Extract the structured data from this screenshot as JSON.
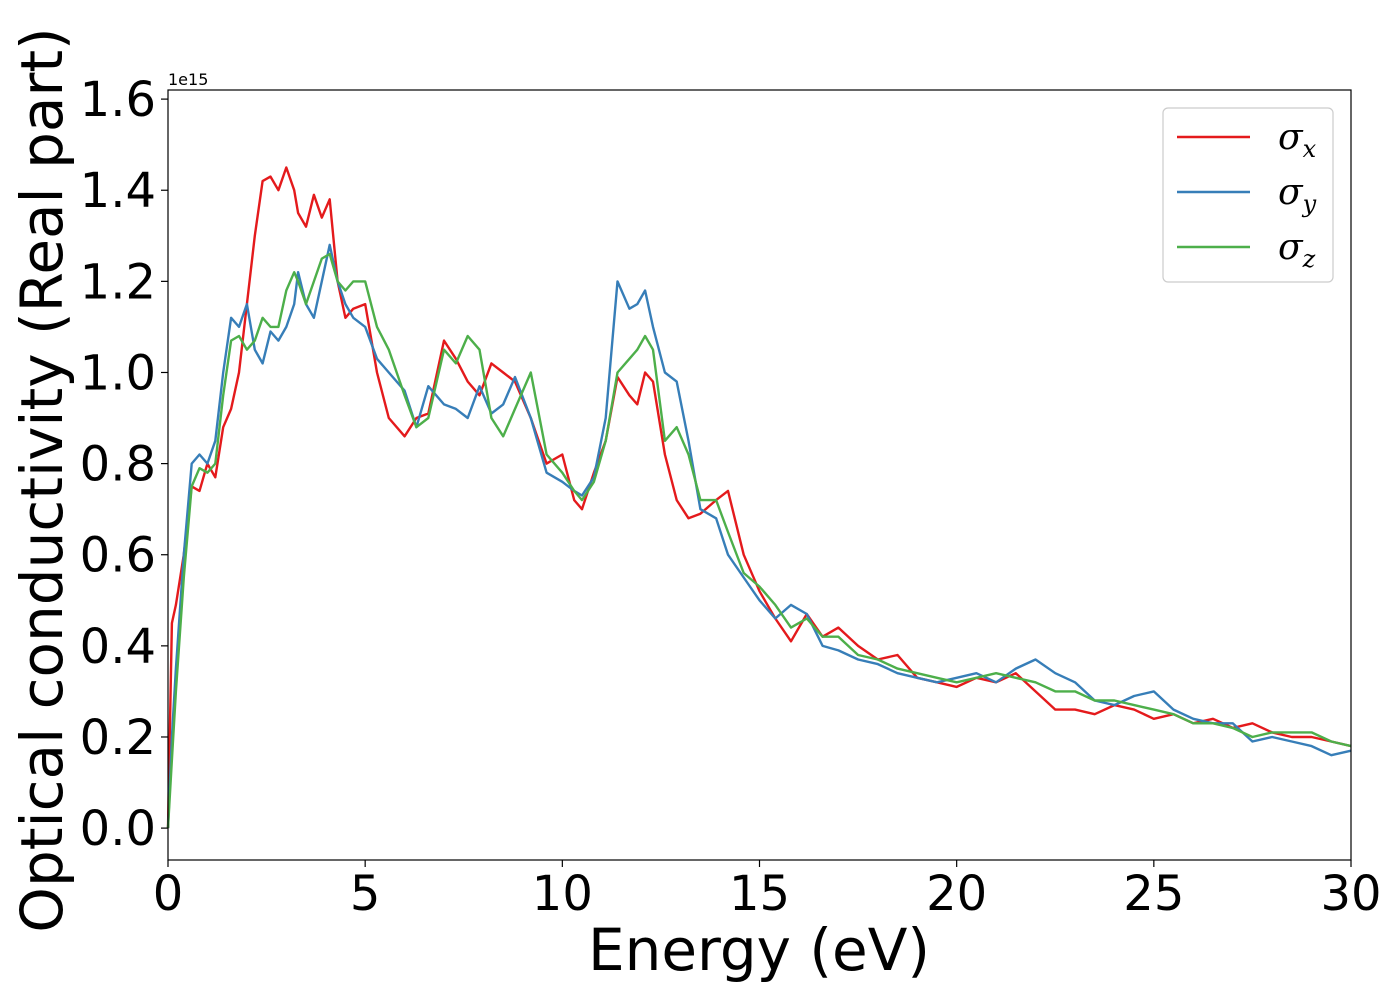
{
  "chart_data": {
    "type": "line",
    "xlabel": "Energy (eV)",
    "ylabel": "Optical conductivity (Real part)",
    "y_offset_label": "1e15",
    "xlim": [
      0,
      30
    ],
    "ylim": [
      -0.07,
      1.62
    ],
    "xticks": [
      0,
      5,
      10,
      15,
      20,
      25,
      30
    ],
    "yticks": [
      0.0,
      0.2,
      0.4,
      0.6,
      0.8,
      1.0,
      1.2,
      1.4,
      1.6
    ],
    "xtick_labels": [
      "0",
      "5",
      "10",
      "15",
      "20",
      "25",
      "30"
    ],
    "ytick_labels": [
      "0.0",
      "0.2",
      "0.4",
      "0.6",
      "0.8",
      "1.0",
      "1.2",
      "1.4",
      "1.6"
    ],
    "grid": false,
    "legend_position": "top-right",
    "series": [
      {
        "name": "σx",
        "legend_base": "σ",
        "legend_sub": "x",
        "color": "#e41a1c",
        "x": [
          0,
          0.1,
          0.2,
          0.4,
          0.6,
          0.8,
          1.0,
          1.2,
          1.4,
          1.6,
          1.8,
          2.0,
          2.2,
          2.4,
          2.6,
          2.8,
          3.0,
          3.2,
          3.3,
          3.5,
          3.7,
          3.9,
          4.1,
          4.3,
          4.5,
          4.7,
          5.0,
          5.3,
          5.6,
          6.0,
          6.3,
          6.6,
          7.0,
          7.3,
          7.6,
          7.9,
          8.2,
          8.5,
          8.8,
          9.2,
          9.6,
          10.0,
          10.3,
          10.5,
          10.8,
          11.1,
          11.4,
          11.7,
          11.9,
          12.1,
          12.3,
          12.6,
          12.9,
          13.2,
          13.5,
          13.9,
          14.2,
          14.6,
          15.0,
          15.4,
          15.8,
          16.2,
          16.6,
          17.0,
          17.5,
          18.0,
          18.5,
          19.0,
          19.5,
          20.0,
          20.5,
          21.0,
          21.5,
          22.0,
          22.5,
          23.0,
          23.5,
          24.0,
          24.5,
          25.0,
          25.5,
          26.0,
          26.5,
          27.0,
          27.5,
          28.0,
          28.5,
          29.0,
          29.5,
          30.0
        ],
        "y": [
          0.0,
          0.45,
          0.49,
          0.6,
          0.75,
          0.74,
          0.8,
          0.77,
          0.88,
          0.92,
          1.0,
          1.15,
          1.3,
          1.42,
          1.43,
          1.4,
          1.45,
          1.4,
          1.35,
          1.32,
          1.39,
          1.34,
          1.38,
          1.2,
          1.12,
          1.14,
          1.15,
          1.0,
          0.9,
          0.86,
          0.9,
          0.91,
          1.07,
          1.03,
          0.98,
          0.95,
          1.02,
          1.0,
          0.98,
          0.9,
          0.8,
          0.82,
          0.72,
          0.7,
          0.78,
          0.85,
          0.99,
          0.95,
          0.93,
          1.0,
          0.98,
          0.82,
          0.72,
          0.68,
          0.69,
          0.72,
          0.74,
          0.6,
          0.52,
          0.46,
          0.41,
          0.47,
          0.42,
          0.44,
          0.4,
          0.37,
          0.38,
          0.33,
          0.32,
          0.31,
          0.33,
          0.32,
          0.34,
          0.3,
          0.26,
          0.26,
          0.25,
          0.27,
          0.26,
          0.24,
          0.25,
          0.23,
          0.24,
          0.22,
          0.23,
          0.21,
          0.2,
          0.2,
          0.19,
          0.18
        ]
      },
      {
        "name": "σy",
        "legend_base": "σ",
        "legend_sub": "y",
        "color": "#377eb8",
        "x": [
          0,
          0.1,
          0.2,
          0.4,
          0.6,
          0.8,
          1.0,
          1.2,
          1.4,
          1.6,
          1.8,
          2.0,
          2.2,
          2.4,
          2.6,
          2.8,
          3.0,
          3.2,
          3.3,
          3.5,
          3.7,
          3.9,
          4.1,
          4.3,
          4.5,
          4.7,
          5.0,
          5.3,
          5.6,
          6.0,
          6.3,
          6.6,
          7.0,
          7.3,
          7.6,
          7.9,
          8.2,
          8.5,
          8.8,
          9.2,
          9.6,
          10.0,
          10.3,
          10.5,
          10.8,
          11.1,
          11.4,
          11.7,
          11.9,
          12.1,
          12.3,
          12.6,
          12.9,
          13.2,
          13.5,
          13.9,
          14.2,
          14.6,
          15.0,
          15.4,
          15.8,
          16.2,
          16.6,
          17.0,
          17.5,
          18.0,
          18.5,
          19.0,
          19.5,
          20.0,
          20.5,
          21.0,
          21.5,
          22.0,
          22.5,
          23.0,
          23.5,
          24.0,
          24.5,
          25.0,
          25.5,
          26.0,
          26.5,
          27.0,
          27.5,
          28.0,
          28.5,
          29.0,
          29.5,
          30.0
        ],
        "y": [
          0.0,
          0.2,
          0.35,
          0.6,
          0.8,
          0.82,
          0.8,
          0.85,
          1.0,
          1.12,
          1.1,
          1.15,
          1.05,
          1.02,
          1.09,
          1.07,
          1.1,
          1.15,
          1.22,
          1.15,
          1.12,
          1.2,
          1.28,
          1.2,
          1.15,
          1.12,
          1.1,
          1.03,
          1.0,
          0.96,
          0.88,
          0.97,
          0.93,
          0.92,
          0.9,
          0.97,
          0.91,
          0.93,
          0.99,
          0.9,
          0.78,
          0.76,
          0.74,
          0.73,
          0.77,
          0.9,
          1.2,
          1.14,
          1.15,
          1.18,
          1.1,
          1.0,
          0.98,
          0.85,
          0.7,
          0.68,
          0.6,
          0.55,
          0.5,
          0.46,
          0.49,
          0.47,
          0.4,
          0.39,
          0.37,
          0.36,
          0.34,
          0.33,
          0.32,
          0.33,
          0.34,
          0.32,
          0.35,
          0.37,
          0.34,
          0.32,
          0.28,
          0.27,
          0.29,
          0.3,
          0.26,
          0.24,
          0.23,
          0.23,
          0.19,
          0.2,
          0.19,
          0.18,
          0.16,
          0.17
        ]
      },
      {
        "name": "σz",
        "legend_base": "σ",
        "legend_sub": "z",
        "color": "#4daf4a",
        "x": [
          0,
          0.1,
          0.2,
          0.4,
          0.6,
          0.8,
          1.0,
          1.2,
          1.4,
          1.6,
          1.8,
          2.0,
          2.2,
          2.4,
          2.6,
          2.8,
          3.0,
          3.2,
          3.3,
          3.5,
          3.7,
          3.9,
          4.1,
          4.3,
          4.5,
          4.7,
          5.0,
          5.3,
          5.6,
          6.0,
          6.3,
          6.6,
          7.0,
          7.3,
          7.6,
          7.9,
          8.2,
          8.5,
          8.8,
          9.2,
          9.6,
          10.0,
          10.3,
          10.5,
          10.8,
          11.1,
          11.4,
          11.7,
          11.9,
          12.1,
          12.3,
          12.6,
          12.9,
          13.2,
          13.5,
          13.9,
          14.2,
          14.6,
          15.0,
          15.4,
          15.8,
          16.2,
          16.6,
          17.0,
          17.5,
          18.0,
          18.5,
          19.0,
          19.5,
          20.0,
          20.5,
          21.0,
          21.5,
          22.0,
          22.5,
          23.0,
          23.5,
          24.0,
          24.5,
          25.0,
          25.5,
          26.0,
          26.5,
          27.0,
          27.5,
          28.0,
          28.5,
          29.0,
          29.5,
          30.0
        ],
        "y": [
          0.0,
          0.15,
          0.3,
          0.55,
          0.75,
          0.79,
          0.78,
          0.8,
          0.95,
          1.07,
          1.08,
          1.05,
          1.07,
          1.12,
          1.1,
          1.1,
          1.18,
          1.22,
          1.2,
          1.15,
          1.2,
          1.25,
          1.26,
          1.2,
          1.18,
          1.2,
          1.2,
          1.1,
          1.05,
          0.95,
          0.88,
          0.9,
          1.05,
          1.02,
          1.08,
          1.05,
          0.9,
          0.86,
          0.92,
          1.0,
          0.82,
          0.78,
          0.74,
          0.72,
          0.76,
          0.85,
          1.0,
          1.03,
          1.05,
          1.08,
          1.05,
          0.85,
          0.88,
          0.82,
          0.72,
          0.72,
          0.65,
          0.56,
          0.53,
          0.49,
          0.44,
          0.46,
          0.42,
          0.42,
          0.38,
          0.37,
          0.35,
          0.34,
          0.33,
          0.32,
          0.33,
          0.34,
          0.33,
          0.32,
          0.3,
          0.3,
          0.28,
          0.28,
          0.27,
          0.26,
          0.25,
          0.23,
          0.23,
          0.22,
          0.2,
          0.21,
          0.21,
          0.21,
          0.19,
          0.18
        ]
      }
    ]
  }
}
